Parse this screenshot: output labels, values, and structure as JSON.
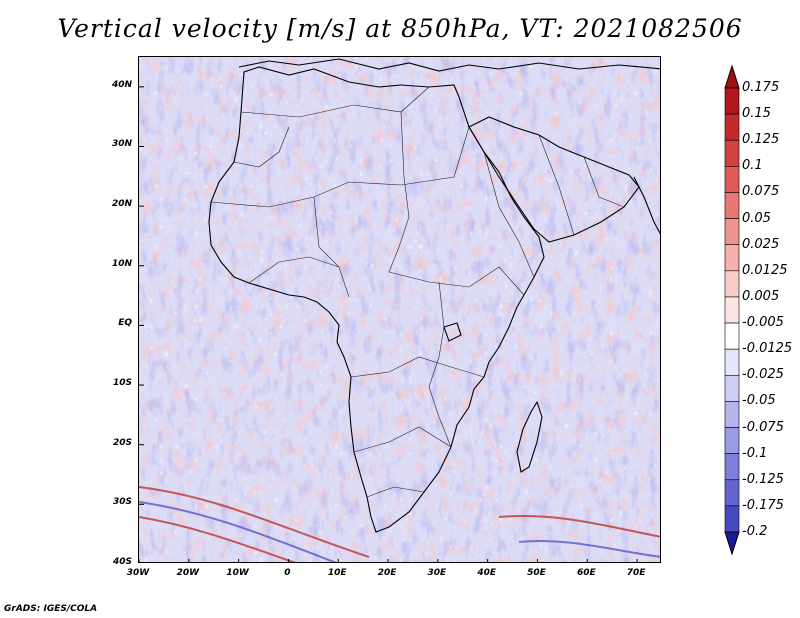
{
  "title": "Vertical velocity [m/s] at 850hPa, VT: 2021082506",
  "footer": "GrADS: IGES/COLA",
  "map": {
    "region": "Africa",
    "lat_range": [
      -40,
      45
    ],
    "lon_range": [
      -30,
      75
    ],
    "lat_ticks": [
      {
        "value": 40,
        "label": "40N"
      },
      {
        "value": 30,
        "label": "30N"
      },
      {
        "value": 20,
        "label": "20N"
      },
      {
        "value": 10,
        "label": "10N"
      },
      {
        "value": 0,
        "label": "EQ"
      },
      {
        "value": -10,
        "label": "10S"
      },
      {
        "value": -20,
        "label": "20S"
      },
      {
        "value": -30,
        "label": "30S"
      },
      {
        "value": -40,
        "label": "40S"
      }
    ],
    "lon_ticks": [
      {
        "value": -30,
        "label": "30W"
      },
      {
        "value": -20,
        "label": "20W"
      },
      {
        "value": -10,
        "label": "10W"
      },
      {
        "value": 0,
        "label": "0"
      },
      {
        "value": 10,
        "label": "10E"
      },
      {
        "value": 20,
        "label": "20E"
      },
      {
        "value": 30,
        "label": "30E"
      },
      {
        "value": 40,
        "label": "40E"
      },
      {
        "value": 50,
        "label": "50E"
      },
      {
        "value": 60,
        "label": "60E"
      },
      {
        "value": 70,
        "label": "70E"
      }
    ]
  },
  "colorbar": {
    "levels": [
      {
        "label": "0.175",
        "color": "#b0161d"
      },
      {
        "label": "0.15",
        "color": "#c42a2a"
      },
      {
        "label": "0.125",
        "color": "#d34040"
      },
      {
        "label": "0.1",
        "color": "#df5a58"
      },
      {
        "label": "0.075",
        "color": "#e87673"
      },
      {
        "label": "0.05",
        "color": "#f0938f"
      },
      {
        "label": "0.025",
        "color": "#f5b0ac"
      },
      {
        "label": "0.0125",
        "color": "#f9cdca"
      },
      {
        "label": "0.005",
        "color": "#fce6e4"
      },
      {
        "label": "-0.005",
        "color": "#ffffff"
      },
      {
        "label": "-0.0125",
        "color": "#e6e6fa"
      },
      {
        "label": "-0.025",
        "color": "#cfcff4"
      },
      {
        "label": "-0.05",
        "color": "#b5b5ee"
      },
      {
        "label": "-0.075",
        "color": "#9b9be6"
      },
      {
        "label": "-0.1",
        "color": "#8080dc"
      },
      {
        "label": "-0.125",
        "color": "#6464d0"
      },
      {
        "label": "-0.175",
        "color": "#4848c2"
      },
      {
        "label": "-0.2",
        "color": "#2c2cb0"
      }
    ],
    "top_arrow_color": "#a01010",
    "bottom_arrow_color": "#1a1a9a"
  },
  "palette": {
    "background": "#dcdcf6",
    "updraft": "#f0a09a",
    "downdraft": "#9c9ce8",
    "coastline": "#000000"
  }
}
